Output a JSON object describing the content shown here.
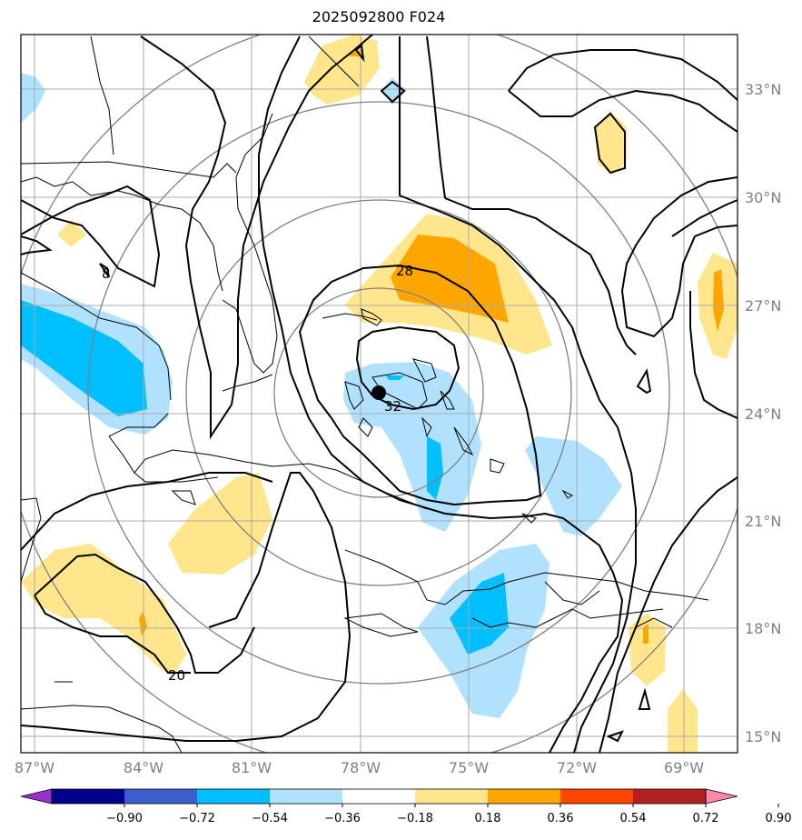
{
  "title": "2025092800 F024",
  "latitude_labels": [
    "33°N",
    "30°N",
    "27°N",
    "24°N",
    "21°N",
    "18°N",
    "15°N"
  ],
  "longitude_labels": [
    "87°W",
    "84°W",
    "81°W",
    "78°W",
    "75°W",
    "72°W",
    "69°W"
  ],
  "contour_labels": [
    "28",
    "32",
    "20",
    "8"
  ],
  "colorbar": {
    "tick_labels": [
      "−0.90",
      "−0.72",
      "−0.54",
      "−0.36",
      "−0.18",
      "0.18",
      "0.36",
      "0.54",
      "0.72",
      "0.90"
    ],
    "colors": [
      "#9932cc",
      "#00008b",
      "#3a5fcd",
      "#00bfff",
      "#b0e2ff",
      "#ffffff",
      "#ffe68c",
      "#ffa500",
      "#ff4500",
      "#b22222",
      "#ff88aa"
    ]
  },
  "colors": {
    "grid": "#a9a9a9",
    "range_rings": "#808080",
    "contours": "#000000",
    "storm_center": "#000000"
  }
}
